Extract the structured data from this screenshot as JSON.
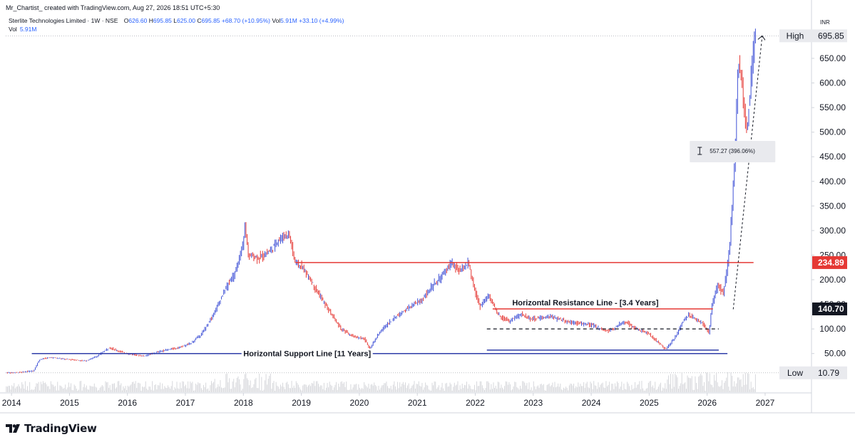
{
  "header": {
    "credit": "Mr_Chartist_ created with TradingView.com, Aug 27, 2026 18:51 UTC+5:30"
  },
  "legend": {
    "symbol": "Sterlite Technologies Limited · 1W · NSE",
    "open_label": "O",
    "open": "626.60",
    "high_label": "H",
    "high": "695.85",
    "low_label": "L",
    "low": "625.00",
    "close_label": "C",
    "close": "695.85",
    "change": "+68.70 (+10.95%)",
    "vol_label": "Vol",
    "vol": "5.91M",
    "vol_change": "+33.10 (+4.99%)",
    "vol_row_label": "Vol",
    "vol_row_value": "5.91M"
  },
  "footer": {
    "brand": "TradingView"
  },
  "chart_data": {
    "type": "candlestick",
    "currency": "INR",
    "x_ticks": [
      "2014",
      "2015",
      "2016",
      "2017",
      "2018",
      "2019",
      "2020",
      "2021",
      "2022",
      "2023",
      "2024",
      "2025",
      "2026",
      "2027"
    ],
    "y_ticks": [
      50,
      100,
      150,
      200,
      250,
      300,
      350,
      400,
      450,
      500,
      550,
      600,
      650
    ],
    "ylim": [
      -30,
      705
    ],
    "xlim": [
      2013.9,
      2027.8
    ],
    "price_path": [
      [
        2013.9,
        10.8
      ],
      [
        2014.2,
        12
      ],
      [
        2014.4,
        15
      ],
      [
        2014.5,
        38
      ],
      [
        2014.7,
        42
      ],
      [
        2015.0,
        38
      ],
      [
        2015.3,
        35
      ],
      [
        2015.5,
        45
      ],
      [
        2015.7,
        62
      ],
      [
        2016.0,
        50
      ],
      [
        2016.3,
        45
      ],
      [
        2016.6,
        55
      ],
      [
        2016.9,
        62
      ],
      [
        2017.1,
        70
      ],
      [
        2017.3,
        90
      ],
      [
        2017.5,
        130
      ],
      [
        2017.7,
        180
      ],
      [
        2017.9,
        220
      ],
      [
        2018.0,
        270
      ],
      [
        2018.05,
        310
      ],
      [
        2018.1,
        250
      ],
      [
        2018.3,
        245
      ],
      [
        2018.5,
        260
      ],
      [
        2018.6,
        280
      ],
      [
        2018.8,
        295
      ],
      [
        2018.9,
        240
      ],
      [
        2019.1,
        215
      ],
      [
        2019.3,
        175
      ],
      [
        2019.5,
        135
      ],
      [
        2019.7,
        100
      ],
      [
        2019.9,
        85
      ],
      [
        2020.1,
        80
      ],
      [
        2020.2,
        60
      ],
      [
        2020.35,
        90
      ],
      [
        2020.5,
        110
      ],
      [
        2020.7,
        130
      ],
      [
        2020.9,
        145
      ],
      [
        2021.1,
        160
      ],
      [
        2021.3,
        190
      ],
      [
        2021.5,
        215
      ],
      [
        2021.6,
        235
      ],
      [
        2021.75,
        215
      ],
      [
        2021.9,
        235
      ],
      [
        2022.0,
        180
      ],
      [
        2022.1,
        145
      ],
      [
        2022.25,
        170
      ],
      [
        2022.4,
        130
      ],
      [
        2022.6,
        115
      ],
      [
        2022.8,
        130
      ],
      [
        2023.0,
        120
      ],
      [
        2023.3,
        125
      ],
      [
        2023.6,
        115
      ],
      [
        2023.9,
        110
      ],
      [
        2024.1,
        105
      ],
      [
        2024.3,
        95
      ],
      [
        2024.6,
        115
      ],
      [
        2024.8,
        100
      ],
      [
        2025.0,
        90
      ],
      [
        2025.2,
        70
      ],
      [
        2025.3,
        58
      ],
      [
        2025.45,
        80
      ],
      [
        2025.6,
        115
      ],
      [
        2025.7,
        130
      ],
      [
        2025.8,
        120
      ],
      [
        2025.95,
        110
      ],
      [
        2026.05,
        90
      ],
      [
        2026.1,
        150
      ],
      [
        2026.2,
        190
      ],
      [
        2026.3,
        170
      ],
      [
        2026.4,
        260
      ],
      [
        2026.5,
        450
      ],
      [
        2026.55,
        650
      ],
      [
        2026.6,
        620
      ],
      [
        2026.65,
        550
      ],
      [
        2026.7,
        500
      ],
      [
        2026.75,
        560
      ],
      [
        2026.8,
        650
      ],
      [
        2026.85,
        695.85
      ]
    ],
    "horizontal_lines": [
      {
        "color": "#e53935",
        "y": 234.89,
        "x_start": 2018.9,
        "x_end": 2026.8
      },
      {
        "color": "#e53935",
        "y": 140.7,
        "x_start": 2022.3,
        "x_end": 2026.1
      },
      {
        "color": "#2f3ea8",
        "y": 50,
        "x_start": 2014.35,
        "x_end": 2026.35
      },
      {
        "color": "#2f3ea8",
        "y": 57,
        "x_start": 2022.2,
        "x_end": 2026.2
      }
    ],
    "dashed_lines": [
      {
        "y": 100,
        "x_start": 2022.2,
        "x_end": 2026.2
      }
    ],
    "trend_line": {
      "x1": 2026.45,
      "y1": 140,
      "x2": 2026.95,
      "y2": 695.85
    },
    "annotations": {
      "resistance": {
        "text": "Horizontal Resistance Line - [3.4 Years]",
        "x": 2023.9,
        "y": 148
      },
      "support": {
        "text": "Horizontal Support Line [11 Years]",
        "x": 2019.1,
        "y": 50
      },
      "measure": {
        "text": "557.27 (396.06%)",
        "x": 2025.7,
        "y": 459
      }
    },
    "price_labels": {
      "high_word": "High",
      "high_value": "695.85",
      "low_word": "Low",
      "low_value": "10.79",
      "resistance_value": "234.89",
      "current_value": "140.70"
    }
  }
}
